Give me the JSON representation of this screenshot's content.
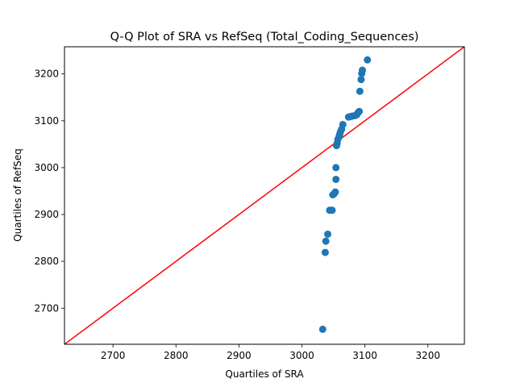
{
  "chart_data": {
    "type": "scatter",
    "title": "Q-Q Plot of SRA vs RefSeq (Total_Coding_Sequences)",
    "xlabel": "Quartiles of SRA",
    "ylabel": "Quartiles of RefSeq",
    "xlim": [
      2623,
      3258
    ],
    "ylim": [
      2623,
      3258
    ],
    "xticks": [
      2700,
      2800,
      2900,
      3000,
      3100,
      3200
    ],
    "yticks": [
      2700,
      2800,
      2900,
      3000,
      3100,
      3200
    ],
    "grid": false,
    "legend": "none",
    "colors": {
      "points": "#1f77b4",
      "reference_line": "#ff0000"
    },
    "reference_line": {
      "from": [
        2623,
        2623
      ],
      "to": [
        3258,
        3258
      ]
    },
    "points": [
      {
        "x": 3033,
        "y": 2655
      },
      {
        "x": 3037,
        "y": 2819
      },
      {
        "x": 3038,
        "y": 2843
      },
      {
        "x": 3041,
        "y": 2858
      },
      {
        "x": 3044,
        "y": 2909
      },
      {
        "x": 3048,
        "y": 2909
      },
      {
        "x": 3049,
        "y": 2942
      },
      {
        "x": 3051,
        "y": 2944
      },
      {
        "x": 3053,
        "y": 2948
      },
      {
        "x": 3054,
        "y": 2975
      },
      {
        "x": 3054,
        "y": 3000
      },
      {
        "x": 3055,
        "y": 3047
      },
      {
        "x": 3056,
        "y": 3052
      },
      {
        "x": 3057,
        "y": 3060
      },
      {
        "x": 3059,
        "y": 3066
      },
      {
        "x": 3060,
        "y": 3071
      },
      {
        "x": 3061,
        "y": 3076
      },
      {
        "x": 3063,
        "y": 3082
      },
      {
        "x": 3065,
        "y": 3092
      },
      {
        "x": 3074,
        "y": 3108
      },
      {
        "x": 3077,
        "y": 3109
      },
      {
        "x": 3080,
        "y": 3110
      },
      {
        "x": 3084,
        "y": 3111
      },
      {
        "x": 3087,
        "y": 3113
      },
      {
        "x": 3089,
        "y": 3117
      },
      {
        "x": 3091,
        "y": 3120
      },
      {
        "x": 3092,
        "y": 3163
      },
      {
        "x": 3094,
        "y": 3188
      },
      {
        "x": 3095,
        "y": 3201
      },
      {
        "x": 3096,
        "y": 3208
      },
      {
        "x": 3104,
        "y": 3230
      }
    ]
  }
}
